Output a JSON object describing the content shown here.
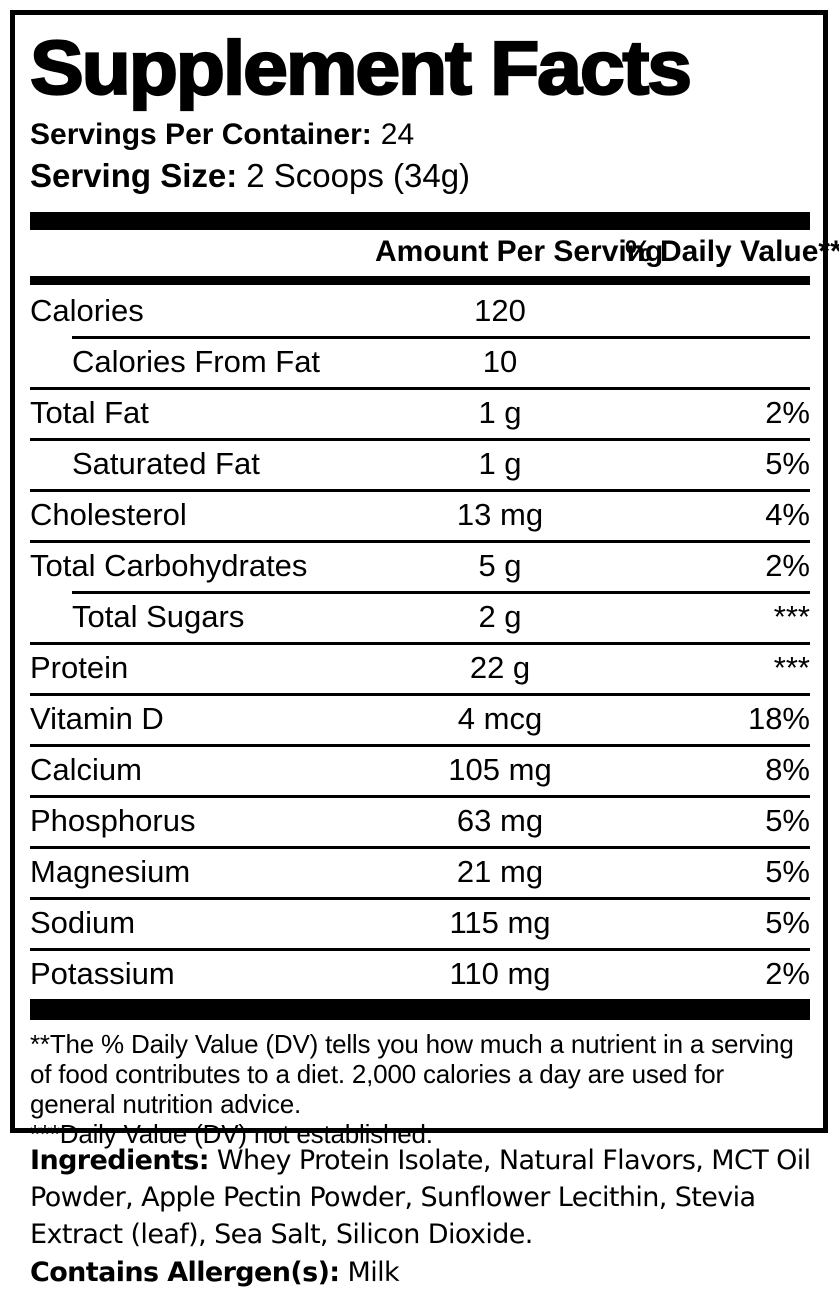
{
  "title": "Supplement Facts",
  "servings_per_container": {
    "label": "Servings Per Container:",
    "value": "24"
  },
  "serving_size": {
    "label": "Serving Size:",
    "value": "2 Scoops (34g)"
  },
  "table": {
    "headers": {
      "amount": "Amount Per Serving",
      "daily_value": "% Daily Value**"
    },
    "rows": [
      {
        "name": "Calories",
        "amount": "120",
        "dv": ""
      },
      {
        "name": "Calories From Fat",
        "amount": "10",
        "dv": ""
      },
      {
        "name": "Total Fat",
        "amount": "1 g",
        "dv": "2%"
      },
      {
        "name": "Saturated Fat",
        "amount": "1 g",
        "dv": "5%"
      },
      {
        "name": "Cholesterol",
        "amount": "13 mg",
        "dv": "4%"
      },
      {
        "name": "Total Carbohydrates",
        "amount": "5 g",
        "dv": "2%"
      },
      {
        "name": "Total Sugars",
        "amount": "2 g",
        "dv": "***"
      },
      {
        "name": "Protein",
        "amount": "22 g",
        "dv": "***"
      },
      {
        "name": "Vitamin D",
        "amount": "4 mcg",
        "dv": "18%"
      },
      {
        "name": "Calcium",
        "amount": "105 mg",
        "dv": "8%"
      },
      {
        "name": "Phosphorus",
        "amount": "63 mg",
        "dv": "5%"
      },
      {
        "name": "Magnesium",
        "amount": "21 mg",
        "dv": "5%"
      },
      {
        "name": "Sodium",
        "amount": "115 mg",
        "dv": "5%"
      },
      {
        "name": "Potassium",
        "amount": "110 mg",
        "dv": "2%"
      }
    ]
  },
  "footnotes": {
    "daily_value_note": "**The % Daily Value (DV) tells you how much a nutrient in a serving of food contributes to a diet. 2,000 calories a day are used for general nutrition advice.",
    "not_established_note": "***Daily Value (DV) not established."
  },
  "ingredients": {
    "label": "Ingredients:",
    "text": "Whey Protein Isolate, Natural Flavors, MCT Oil Powder, Apple Pectin Powder, Sunflower Lecithin, Stevia Extract (leaf), Sea Salt, Silicon Dioxide."
  },
  "allergens": {
    "label": "Contains Allergen(s):",
    "text": "Milk"
  },
  "colors": {
    "text": "#000000",
    "background": "#ffffff"
  }
}
